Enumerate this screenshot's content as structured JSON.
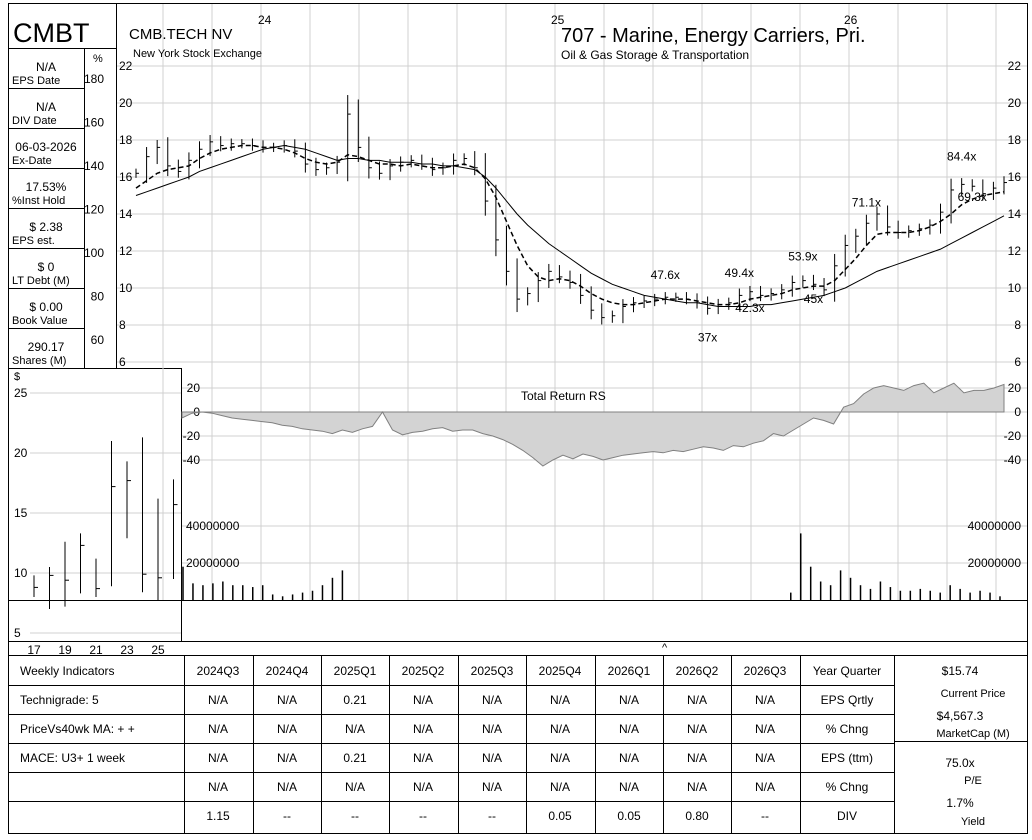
{
  "header": {
    "ticker": "CMBT",
    "company": "CMB.TECH NV",
    "exchange": "New York Stock Exchange",
    "industry_group": "707 - Marine, Energy Carriers, Pri.",
    "industry": "Oil & Gas Storage & Transportation",
    "year_labels": [
      "24",
      "25",
      "26"
    ]
  },
  "sidebar": {
    "pct_symbol": "%",
    "pct_ticks": [
      "180",
      "160",
      "140",
      "120",
      "100",
      "80",
      "60"
    ],
    "items": [
      {
        "value": "N/A",
        "label": "EPS Date"
      },
      {
        "value": "N/A",
        "label": "DIV Date"
      },
      {
        "value": "06-03-2026",
        "label": "Ex-Date"
      },
      {
        "value": "17.53%",
        "label": "%Inst Hold"
      },
      {
        "value": "$ 2.38",
        "label": "EPS est."
      },
      {
        "value": "$ 0",
        "label": "LT Debt (M)"
      },
      {
        "value": "$ 0.00",
        "label": "Book Value"
      },
      {
        "value": "290.17",
        "label": "Shares (M)"
      }
    ]
  },
  "price_axis": {
    "ticks": [
      "22",
      "20",
      "18",
      "16",
      "14",
      "12",
      "10",
      "8",
      "6"
    ]
  },
  "rs": {
    "title": "Total Return RS",
    "ticks": [
      "20",
      "0",
      "-20",
      "-40"
    ]
  },
  "volume": {
    "ticks": [
      "40000000",
      "20000000"
    ]
  },
  "annotations": [
    "84.4x",
    "71.1x",
    "69.3x",
    "53.9x",
    "49.4x",
    "47.6x",
    "45x",
    "42.3x",
    "37x"
  ],
  "caret": "^",
  "inset": {
    "currency": "$",
    "y_ticks": [
      "25",
      "20",
      "15",
      "10",
      "5"
    ],
    "x_ticks": [
      "17",
      "19",
      "21",
      "23",
      "25"
    ]
  },
  "table": {
    "labels": [
      "Weekly Indicators",
      "Technigrade: 5",
      "PriceVs40wk MA:  + +",
      "MACE: U3+  1 week",
      "",
      ""
    ],
    "columns": [
      "2024Q3",
      "2024Q4",
      "2025Q1",
      "2025Q2",
      "2025Q3",
      "2025Q4",
      "2026Q1",
      "2026Q2",
      "2026Q3"
    ],
    "rows": [
      {
        "values": [
          "N/A",
          "N/A",
          "0.21",
          "N/A",
          "N/A",
          "N/A",
          "N/A",
          "N/A",
          "N/A"
        ],
        "label": "EPS Qrtly"
      },
      {
        "values": [
          "N/A",
          "N/A",
          "N/A",
          "N/A",
          "N/A",
          "N/A",
          "N/A",
          "N/A",
          "N/A"
        ],
        "label": "% Chng"
      },
      {
        "values": [
          "N/A",
          "N/A",
          "0.21",
          "N/A",
          "N/A",
          "N/A",
          "N/A",
          "N/A",
          "N/A"
        ],
        "label": "EPS (ttm)"
      },
      {
        "values": [
          "N/A",
          "N/A",
          "N/A",
          "N/A",
          "N/A",
          "N/A",
          "N/A",
          "N/A",
          "N/A"
        ],
        "label": "% Chng"
      },
      {
        "values": [
          "1.15",
          "--",
          "--",
          "--",
          "--",
          "0.05",
          "0.05",
          "0.80",
          "--"
        ],
        "label": "DIV"
      }
    ],
    "year_quarter_label": "Year Quarter",
    "right": [
      {
        "value": "$15.74",
        "label": "Current Price"
      },
      {
        "value": "$4,567.3",
        "label": "MarketCap (M)"
      },
      {
        "value": "75.0x",
        "label": "P/E"
      },
      {
        "value": "1.7%",
        "label": "Yield"
      }
    ]
  },
  "colors": {
    "rs_fill": "#d3d3d3",
    "grid": "#d0d0d0",
    "line": "#000000"
  },
  "chart_data": {
    "type": "line",
    "title": "CMB.TECH NV",
    "price": {
      "ylim": [
        6,
        22
      ],
      "series": [
        {
          "values": [
            16.2,
            17.1,
            17.6,
            16.6,
            16.3,
            16.9,
            17.5,
            17.9,
            17.7,
            17.8,
            17.8,
            17.7,
            17.6,
            17.6,
            17.7,
            17.4,
            16.7,
            16.4,
            16.5,
            16.8,
            19.4,
            17.6,
            16.5,
            16.2,
            16.6,
            16.8,
            16.9,
            16.7,
            16.4,
            16.5,
            16.9,
            17.0,
            16.5,
            14.7,
            12.6,
            10.9,
            9.4,
            9.7,
            10.4,
            10.9,
            10.6,
            10.3,
            9.6,
            8.8,
            8.4,
            8.5,
            9.0,
            9.2,
            9.3,
            9.4,
            9.5,
            9.5,
            9.4,
            9.2,
            8.9,
            9.1,
            9.2,
            9.6,
            9.8,
            9.6,
            9.7,
            9.9,
            10.3,
            10.4,
            10.2,
            9.9,
            11.2,
            12.3,
            12.8,
            13.5,
            14.0,
            13.3,
            13.0,
            13.1,
            13.2,
            13.4,
            14.1,
            15.3,
            15.6,
            15.5,
            15.1,
            15.4,
            15.7
          ]
        },
        {
          "values": [
            15.4,
            15.8,
            16.2,
            16.4,
            16.5,
            16.6,
            17.0,
            17.3,
            17.5,
            17.6,
            17.7,
            17.7,
            17.6,
            17.6,
            17.5,
            17.3,
            17.0,
            16.8,
            16.7,
            16.8,
            17.2,
            17.1,
            16.9,
            16.7,
            16.7,
            16.6,
            16.7,
            16.6,
            16.5,
            16.5,
            16.6,
            16.7,
            16.5,
            15.9,
            14.9,
            13.6,
            12.3,
            11.2,
            10.6,
            10.4,
            10.5,
            10.4,
            10.1,
            9.7,
            9.4,
            9.2,
            9.1,
            9.1,
            9.2,
            9.3,
            9.4,
            9.4,
            9.4,
            9.3,
            9.2,
            9.1,
            9.1,
            9.2,
            9.4,
            9.5,
            9.6,
            9.7,
            9.9,
            10.0,
            10.1,
            10.1,
            10.4,
            11.0,
            11.6,
            12.3,
            12.9,
            13.0,
            13.0,
            13.0,
            13.1,
            13.3,
            13.6,
            14.0,
            14.5,
            14.8,
            15.0,
            15.1,
            15.2
          ]
        },
        {
          "values": [
            15.0,
            15.2,
            15.4,
            15.6,
            15.8,
            16.0,
            16.3,
            16.5,
            16.7,
            16.9,
            17.1,
            17.3,
            17.5,
            17.6,
            17.7,
            17.6,
            17.5,
            17.3,
            17.1,
            16.9,
            17.0,
            17.0,
            16.9,
            16.9,
            16.8,
            16.8,
            16.8,
            16.7,
            16.7,
            16.6,
            16.6,
            16.5,
            16.4,
            16.0,
            15.4,
            14.7,
            14.0,
            13.4,
            12.9,
            12.4,
            12.0,
            11.6,
            11.2,
            10.8,
            10.5,
            10.2,
            10.0,
            9.8,
            9.6,
            9.5,
            9.4,
            9.3,
            9.2,
            9.2,
            9.1,
            9.0,
            9.0,
            9.0,
            9.0,
            9.1,
            9.1,
            9.2,
            9.3,
            9.4,
            9.5,
            9.6,
            9.8,
            10.0,
            10.3,
            10.6,
            10.9,
            11.1,
            11.3,
            11.5,
            11.7,
            11.9,
            12.1,
            12.4,
            12.7,
            13.0,
            13.3,
            13.6,
            13.9
          ]
        }
      ]
    },
    "rs": {
      "ylim": [
        -50,
        30
      ],
      "values": [
        -5,
        -1,
        0,
        -1,
        -3,
        -5,
        -6,
        -7,
        -8,
        -9,
        -11,
        -12,
        -14,
        -15,
        -16,
        -18,
        -15,
        -17,
        -14,
        -12,
        0,
        -15,
        -19,
        -17,
        -16,
        -14,
        -13,
        -16,
        -15,
        -15,
        -18,
        -20,
        -23,
        -27,
        -32,
        -38,
        -45,
        -40,
        -36,
        -39,
        -35,
        -37,
        -40,
        -38,
        -36,
        -35,
        -34,
        -33,
        -34,
        -32,
        -33,
        -31,
        -29,
        -30,
        -32,
        -28,
        -29,
        -26,
        -24,
        -18,
        -20,
        -15,
        -10,
        -5,
        -7,
        -10,
        4,
        7,
        15,
        20,
        22,
        20,
        18,
        22,
        24,
        16,
        20,
        24,
        16,
        18,
        18,
        20,
        23
      ]
    },
    "volume": {
      "ylim": [
        0,
        50000000
      ],
      "values": [
        18000000,
        9000000,
        8000000,
        9000000,
        10000000,
        8000000,
        8000000,
        7000000,
        8000000,
        3000000,
        2000000,
        3000000,
        4000000,
        5000000,
        8000000,
        12000000,
        16000000,
        0,
        0,
        0,
        0,
        0,
        0,
        0,
        0,
        0,
        0,
        0,
        0,
        0,
        0,
        0,
        0,
        0,
        0,
        0,
        0,
        0,
        0,
        0,
        0,
        0,
        0,
        0,
        0,
        0,
        0,
        0,
        0,
        0,
        0,
        0,
        0,
        0,
        0,
        0,
        0,
        0,
        0,
        0,
        0,
        4000000,
        36000000,
        18000000,
        10000000,
        8000000,
        16000000,
        12000000,
        8000000,
        6000000,
        10000000,
        7000000,
        5000000,
        5000000,
        6000000,
        5000000,
        4000000,
        8000000,
        6000000,
        4000000,
        5000000,
        4000000,
        2000000
      ]
    },
    "inset": {
      "categories": [
        "17",
        "18",
        "19",
        "20",
        "21",
        "22",
        "23",
        "24",
        "25",
        "26"
      ],
      "high": [
        9.8,
        10.5,
        12.6,
        13.3,
        11.2,
        21.0,
        19.3,
        21.3,
        16.2,
        17.8
      ],
      "low": [
        8.0,
        7.0,
        7.2,
        8.3,
        8.0,
        8.9,
        12.9,
        8.4,
        7.7,
        9.5
      ],
      "close": [
        8.8,
        9.8,
        9.4,
        12.3,
        8.7,
        17.2,
        17.7,
        9.9,
        9.6,
        15.7
      ],
      "ylim": [
        4,
        28
      ]
    }
  }
}
